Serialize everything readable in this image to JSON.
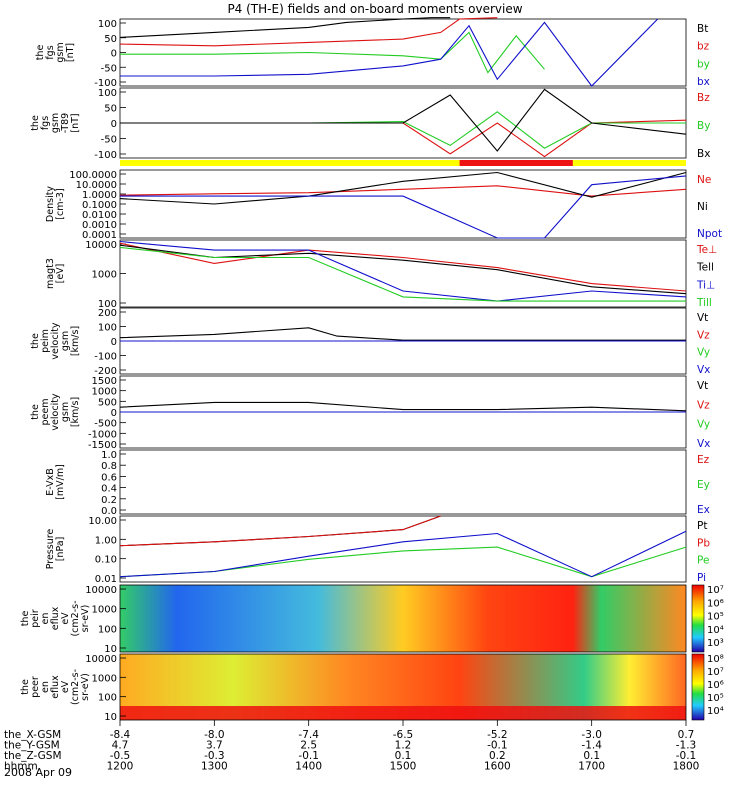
{
  "title": "P4 (TH-E) fields and on-board moments overview",
  "colors": {
    "black": "#000000",
    "red": "#dd1010",
    "green": "#22cc22",
    "blue": "#1010cc",
    "yellow": "#ffff00",
    "barred": "#ee1111"
  },
  "footer": {
    "rows": [
      {
        "label": "the_X-GSM",
        "values": [
          "-8.4",
          "-8.0",
          "-7.4",
          "-6.5",
          "-5.2",
          "-3.0",
          "0.7"
        ]
      },
      {
        "label": "the_Y-GSM",
        "values": [
          "4.7",
          "3.7",
          "2.5",
          "1.2",
          "-0.1",
          "-1.4",
          "-1.3"
        ]
      },
      {
        "label": "the_Z-GSM",
        "values": [
          "-0.5",
          "-0.3",
          "-0.1",
          "0.1",
          "0.2",
          "0.1",
          "-0.1"
        ]
      },
      {
        "label": "hhmm",
        "values": [
          "1200",
          "1300",
          "1400",
          "1500",
          "1600",
          "1700",
          "1800"
        ]
      }
    ],
    "date": "2008 Apr 09"
  },
  "chart_data": [
    {
      "panel": "fgs_gsm",
      "type": "line",
      "ylabel": [
        "the",
        "fgs",
        "gsm",
        "[nT]"
      ],
      "yticks": [
        "100",
        "50",
        "0",
        "-50",
        "-100"
      ],
      "ylim": [
        -100,
        100
      ],
      "legend": [
        {
          "name": "Bt",
          "color": "black"
        },
        {
          "name": "bz",
          "color": "red"
        },
        {
          "name": "by",
          "color": "green"
        },
        {
          "name": "bx",
          "color": "blue"
        }
      ],
      "series": [
        {
          "name": "Bt",
          "x": [
            1200,
            1300,
            1400,
            1440,
            1500,
            1530,
            1550
          ],
          "y": [
            45,
            60,
            75,
            90,
            100,
            110,
            120
          ]
        },
        {
          "name": "bz",
          "x": [
            1200,
            1300,
            1400,
            1500,
            1540,
            1560,
            1600
          ],
          "y": [
            25,
            20,
            30,
            40,
            60,
            100,
            130
          ]
        },
        {
          "name": "by",
          "x": [
            1200,
            1300,
            1400,
            1500,
            1540,
            1570,
            1590,
            1620,
            1650
          ],
          "y": [
            -5,
            -5,
            0,
            -10,
            -20,
            60,
            -60,
            50,
            -50
          ]
        },
        {
          "name": "bx",
          "x": [
            1200,
            1300,
            1400,
            1500,
            1540,
            1570,
            1600,
            1650,
            1700,
            1770
          ],
          "y": [
            -70,
            -70,
            -65,
            -40,
            -20,
            80,
            -80,
            90,
            -100,
            100
          ]
        }
      ]
    },
    {
      "panel": "fgs_gsm_t89",
      "type": "line",
      "ylabel": [
        "the",
        "fgs",
        "gsm",
        "-T89",
        "[nT]"
      ],
      "yticks": [
        "100",
        "50",
        "0",
        "-50",
        "-100"
      ],
      "ylim": [
        -125,
        125
      ],
      "legend": [
        {
          "name": "Bz",
          "color": "red"
        },
        {
          "name": "By",
          "color": "green"
        },
        {
          "name": "Bx",
          "color": "black"
        }
      ],
      "series": [
        {
          "name": "Bz",
          "x": [
            1200,
            1300,
            1400,
            1500,
            1550,
            1600,
            1650,
            1700,
            1800
          ],
          "y": [
            0,
            0,
            0,
            0,
            -110,
            0,
            -120,
            0,
            10
          ]
        },
        {
          "name": "By",
          "x": [
            1200,
            1300,
            1400,
            1500,
            1550,
            1600,
            1650,
            1700,
            1800
          ],
          "y": [
            0,
            0,
            0,
            5,
            -80,
            40,
            -90,
            0,
            0
          ]
        },
        {
          "name": "Bx",
          "x": [
            1200,
            1300,
            1400,
            1500,
            1550,
            1600,
            1650,
            1700,
            1800
          ],
          "y": [
            0,
            0,
            0,
            0,
            100,
            -100,
            120,
            0,
            -40
          ]
        }
      ]
    },
    {
      "panel": "density",
      "type": "line",
      "ylabel": [
        "Density",
        "[cm-3]"
      ],
      "yticks": [
        "100.0000",
        "10.0000",
        "1.0000",
        "0.1000",
        "0.0100",
        "0.0010",
        "0.0001"
      ],
      "ylim": [
        0.0001,
        100
      ],
      "yscale": "log",
      "legend": [
        {
          "name": "Ne",
          "color": "red"
        },
        {
          "name": "Ni",
          "color": "black"
        },
        {
          "name": "Npot",
          "color": "blue"
        }
      ],
      "series": [
        {
          "name": "Ne",
          "x": [
            1200,
            1300,
            1400,
            1500,
            1600,
            1700,
            1800
          ],
          "y": [
            0.6,
            0.8,
            1.0,
            2.0,
            4.0,
            0.5,
            2.0
          ]
        },
        {
          "name": "Ni",
          "x": [
            1200,
            1300,
            1400,
            1500,
            1600,
            1700,
            1800
          ],
          "y": [
            0.3,
            0.1,
            0.5,
            10,
            60,
            0.4,
            60
          ]
        },
        {
          "name": "Npot",
          "x": [
            1200,
            1300,
            1400,
            1500,
            1600,
            1650,
            1700,
            1800
          ],
          "y": [
            0.5,
            0.5,
            0.5,
            0.5,
            0.0001,
            0.0001,
            5,
            30
          ]
        }
      ]
    },
    {
      "panel": "magt3",
      "type": "line",
      "ylabel": [
        "magt3",
        "[eV]"
      ],
      "yticks": [
        "10000",
        "1000",
        "100"
      ],
      "ylim": [
        100,
        10000
      ],
      "yscale": "log",
      "legend": [
        {
          "name": "Te⊥",
          "color": "red"
        },
        {
          "name": "Tell",
          "color": "black"
        },
        {
          "name": "Ti⊥",
          "color": "blue"
        },
        {
          "name": "Till",
          "color": "green"
        }
      ],
      "series": [
        {
          "name": "Te⊥",
          "x": [
            1200,
            1300,
            1400,
            1500,
            1600,
            1700,
            1800
          ],
          "y": [
            8000,
            2000,
            5000,
            3000,
            1500,
            500,
            300
          ]
        },
        {
          "name": "Tell",
          "x": [
            1200,
            1300,
            1400,
            1500,
            1600,
            1700,
            1800
          ],
          "y": [
            7000,
            3000,
            4000,
            2500,
            1300,
            400,
            250
          ]
        },
        {
          "name": "Ti⊥",
          "x": [
            1200,
            1300,
            1400,
            1500,
            1600,
            1700,
            1800
          ],
          "y": [
            9000,
            5000,
            5000,
            300,
            150,
            300,
            200
          ]
        },
        {
          "name": "Till",
          "x": [
            1200,
            1300,
            1400,
            1500,
            1600,
            1700,
            1800
          ],
          "y": [
            6000,
            3000,
            3000,
            200,
            150,
            150,
            150
          ]
        }
      ]
    },
    {
      "panel": "peim_velocity",
      "type": "line",
      "ylabel": [
        "the",
        "peim",
        "velocity",
        "gsm",
        "[km/s]"
      ],
      "yticks": [
        "200",
        "100",
        "0",
        "-100",
        "-200"
      ],
      "ylim": [
        -200,
        200
      ],
      "legend": [
        {
          "name": "Vt",
          "color": "black"
        },
        {
          "name": "Vz",
          "color": "red"
        },
        {
          "name": "Vy",
          "color": "green"
        },
        {
          "name": "Vx",
          "color": "blue"
        }
      ],
      "series": [
        {
          "name": "Vt",
          "x": [
            1200,
            1300,
            1400,
            1430,
            1500,
            1600,
            1700,
            1800
          ],
          "y": [
            20,
            40,
            80,
            30,
            5,
            5,
            5,
            5
          ]
        },
        {
          "name": "Vz",
          "x": [
            1200,
            1300,
            1400,
            1500,
            1600,
            1700,
            1800
          ],
          "y": [
            0,
            0,
            0,
            0,
            0,
            0,
            0
          ]
        },
        {
          "name": "Vy",
          "x": [
            1200,
            1300,
            1400,
            1500,
            1600,
            1700,
            1800
          ],
          "y": [
            0,
            0,
            0,
            0,
            0,
            0,
            0
          ]
        },
        {
          "name": "Vx",
          "x": [
            1200,
            1300,
            1400,
            1500,
            1600,
            1700,
            1800
          ],
          "y": [
            0,
            0,
            0,
            0,
            0,
            0,
            0
          ]
        }
      ]
    },
    {
      "panel": "peem_velocity",
      "type": "line",
      "ylabel": [
        "the",
        "peem",
        "velocity",
        "gsm",
        "[km/s]"
      ],
      "yticks": [
        "1500",
        "1000",
        "500",
        "0",
        "-500",
        "-1000",
        "-1500"
      ],
      "ylim": [
        -1500,
        1500
      ],
      "legend": [
        {
          "name": "Vt",
          "color": "black"
        },
        {
          "name": "Vz",
          "color": "red"
        },
        {
          "name": "Vy",
          "color": "green"
        },
        {
          "name": "Vx",
          "color": "blue"
        }
      ],
      "series": [
        {
          "name": "Vt",
          "x": [
            1200,
            1300,
            1400,
            1500,
            1600,
            1700,
            1800
          ],
          "y": [
            200,
            400,
            400,
            100,
            100,
            200,
            50
          ]
        },
        {
          "name": "Vz",
          "x": [
            1200,
            1300,
            1400,
            1500,
            1600,
            1700,
            1800
          ],
          "y": [
            0,
            0,
            0,
            0,
            0,
            0,
            0
          ]
        },
        {
          "name": "Vy",
          "x": [
            1200,
            1300,
            1400,
            1500,
            1600,
            1700,
            1800
          ],
          "y": [
            0,
            0,
            0,
            0,
            0,
            0,
            0
          ]
        },
        {
          "name": "Vx",
          "x": [
            1200,
            1300,
            1400,
            1500,
            1600,
            1700,
            1800
          ],
          "y": [
            0,
            0,
            0,
            0,
            0,
            0,
            0
          ]
        }
      ]
    },
    {
      "panel": "e_vxb",
      "type": "line",
      "ylabel": [
        "E-VxB",
        "[mV/m]"
      ],
      "yticks": [
        "1.0",
        "0.8",
        "0.6",
        "0.4",
        "0.2",
        "0.0"
      ],
      "ylim": [
        0,
        1
      ],
      "legend": [
        {
          "name": "Ez",
          "color": "red"
        },
        {
          "name": "Ey",
          "color": "green"
        },
        {
          "name": "Ex",
          "color": "blue"
        }
      ],
      "series": []
    },
    {
      "panel": "pressure",
      "type": "line",
      "ylabel": [
        "Pressure",
        "[nPa]"
      ],
      "yticks": [
        "10.00",
        "1.00",
        "0.10",
        "0.01"
      ],
      "ylim": [
        0.005,
        30
      ],
      "yscale": "log",
      "legend": [
        {
          "name": "Pt",
          "color": "black"
        },
        {
          "name": "Pb",
          "color": "red"
        },
        {
          "name": "Pe",
          "color": "green"
        },
        {
          "name": "Pi",
          "color": "blue"
        }
      ],
      "series": [
        {
          "name": "Pt",
          "x": [
            1200,
            1300,
            1400,
            1500,
            1540
          ],
          "y": [
            0.6,
            1.0,
            2.0,
            5.0,
            30
          ]
        },
        {
          "name": "Pb",
          "x": [
            1200,
            1300,
            1400,
            1500,
            1540
          ],
          "y": [
            0.6,
            1.0,
            2.0,
            5.0,
            30
          ]
        },
        {
          "name": "Pe",
          "x": [
            1200,
            1300,
            1400,
            1500,
            1600,
            1700,
            1800
          ],
          "y": [
            0.01,
            0.02,
            0.1,
            0.3,
            0.5,
            0.01,
            0.5
          ]
        },
        {
          "name": "Pi",
          "x": [
            1200,
            1300,
            1400,
            1500,
            1600,
            1700,
            1800
          ],
          "y": [
            0.01,
            0.02,
            0.15,
            1.0,
            3.0,
            0.01,
            4.0
          ]
        }
      ]
    },
    {
      "panel": "peir_en_eflux",
      "type": "heatmap",
      "ylabel": [
        "the",
        "peir",
        "en",
        "eflux",
        "eV",
        "(cm2-s-",
        "sr-eV)"
      ],
      "yticks": [
        "10000",
        "1000",
        "100",
        "10"
      ],
      "ylim": [
        10,
        20000
      ],
      "yscale": "log",
      "colorbar": {
        "labels": [
          "10⁷",
          "10⁶",
          "10⁵",
          "10⁴",
          "10³"
        ]
      }
    },
    {
      "panel": "peer_en_eflux",
      "type": "heatmap",
      "ylabel": [
        "the",
        "peer",
        "en",
        "eflux",
        "eV",
        "(cm2-s-",
        "sr-eV)"
      ],
      "yticks": [
        "10000",
        "1000",
        "100",
        "10"
      ],
      "ylim": [
        10,
        20000
      ],
      "yscale": "log",
      "colorbar": {
        "labels": [
          "10⁸",
          "10⁷",
          "10⁶",
          "10⁵",
          "10⁴"
        ]
      }
    }
  ]
}
